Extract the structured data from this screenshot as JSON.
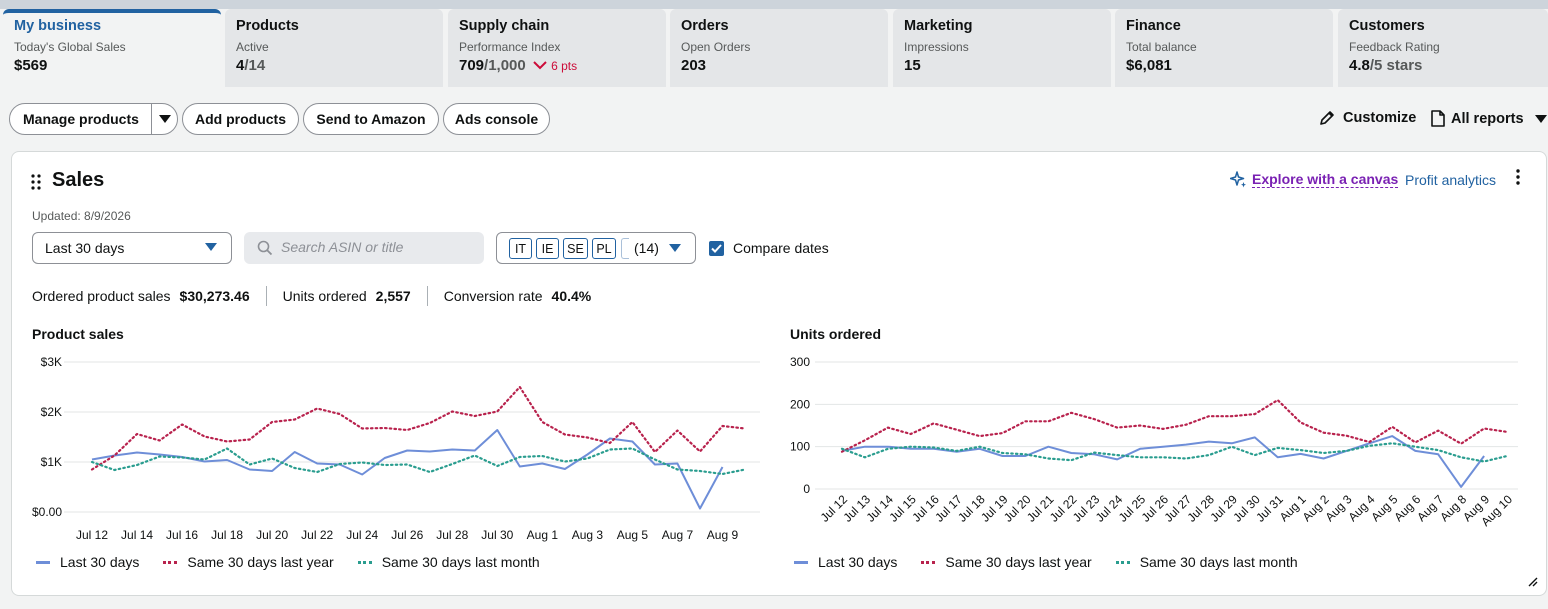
{
  "tabs": [
    {
      "title": "My business",
      "subtitle": "Today's Global Sales",
      "value": "$569",
      "value_suffix": "",
      "delta": ""
    },
    {
      "title": "Products",
      "subtitle": "Active",
      "value": "4",
      "value_suffix": "/14",
      "delta": ""
    },
    {
      "title": "Supply chain",
      "subtitle": "Performance Index",
      "value": "709",
      "value_suffix": "/1,000",
      "delta": "6 pts"
    },
    {
      "title": "Orders",
      "subtitle": "Open Orders",
      "value": "203",
      "value_suffix": "",
      "delta": ""
    },
    {
      "title": "Marketing",
      "subtitle": "Impressions",
      "value": "15",
      "value_suffix": "",
      "delta": ""
    },
    {
      "title": "Finance",
      "subtitle": "Total balance",
      "value": "$6,081",
      "value_suffix": "",
      "delta": ""
    },
    {
      "title": "Customers",
      "subtitle": "Feedback Rating",
      "value": "4.8",
      "value_suffix": "/5 stars",
      "delta": ""
    }
  ],
  "actions": {
    "manage_products": "Manage products",
    "add_products": "Add products",
    "send_to_amazon": "Send to Amazon",
    "ads_console": "Ads console",
    "customize": "Customize",
    "all_reports": "All reports"
  },
  "card": {
    "title": "Sales",
    "explore": "Explore with a canvas",
    "profit": "Profit analytics",
    "updated": "Updated: 8/9/2026"
  },
  "filters": {
    "date_range": "Last 30 days",
    "search_placeholder": "Search ASIN or title",
    "marketplaces": [
      "IT",
      "IE",
      "SE",
      "PL"
    ],
    "marketplace_count": "(14)",
    "compare_label": "Compare dates",
    "compare_checked": true
  },
  "metrics": [
    {
      "label": "Ordered product sales",
      "value": "$30,273.46"
    },
    {
      "label": "Units ordered",
      "value": "2,557"
    },
    {
      "label": "Conversion rate",
      "value": "40.4%"
    }
  ],
  "colors": {
    "accent": "#2162a1",
    "explore": "#7a21b3",
    "down": "#cc0c39",
    "series_blue": "#6e8ed8",
    "series_red": "#b8224d",
    "series_teal": "#2a9d8f"
  },
  "chart_data": [
    {
      "type": "line",
      "title": "Product sales",
      "x": [
        "Jul 12",
        "Jul 13",
        "Jul 14",
        "Jul 15",
        "Jul 16",
        "Jul 17",
        "Jul 18",
        "Jul 19",
        "Jul 20",
        "Jul 21",
        "Jul 22",
        "Jul 23",
        "Jul 24",
        "Jul 25",
        "Jul 26",
        "Jul 27",
        "Jul 28",
        "Jul 29",
        "Jul 30",
        "Jul 31",
        "Aug 1",
        "Aug 2",
        "Aug 3",
        "Aug 4",
        "Aug 5",
        "Aug 6",
        "Aug 7",
        "Aug 8",
        "Aug 9",
        "Aug 10"
      ],
      "xtick_labels": [
        "Jul 12",
        "Jul 14",
        "Jul 16",
        "Jul 18",
        "Jul 20",
        "Jul 22",
        "Jul 24",
        "Jul 26",
        "Jul 28",
        "Jul 30",
        "Aug 1",
        "Aug 3",
        "Aug 5",
        "Aug 7",
        "Aug 9"
      ],
      "ytick_labels": [
        "$0.00",
        "$1K",
        "$2K",
        "$3K"
      ],
      "ylim": [
        0,
        3000
      ],
      "grid": true,
      "legend_position": "bottom-left",
      "series": [
        {
          "name": "Last 30 days",
          "style": "solid",
          "values": [
            1050,
            1130,
            1190,
            1150,
            1100,
            1010,
            1040,
            850,
            820,
            1200,
            970,
            950,
            750,
            1080,
            1230,
            1210,
            1250,
            1230,
            1640,
            910,
            970,
            860,
            1150,
            1470,
            1410,
            950,
            970,
            70,
            900,
            null
          ]
        },
        {
          "name": "Same 30 days last year",
          "style": "dotted",
          "values": [
            850,
            1130,
            1560,
            1430,
            1750,
            1510,
            1410,
            1450,
            1800,
            1850,
            2070,
            1960,
            1670,
            1680,
            1640,
            1780,
            2010,
            1920,
            2010,
            2500,
            1800,
            1550,
            1490,
            1380,
            1800,
            1200,
            1630,
            1210,
            1720,
            1670
          ]
        },
        {
          "name": "Same 30 days last month",
          "style": "dotted",
          "values": [
            1000,
            840,
            940,
            1110,
            1090,
            1050,
            1270,
            950,
            1070,
            880,
            800,
            960,
            990,
            940,
            950,
            800,
            960,
            1130,
            920,
            1100,
            1120,
            1010,
            1070,
            1250,
            1270,
            1050,
            850,
            820,
            760,
            850
          ]
        }
      ]
    },
    {
      "type": "line",
      "title": "Units ordered",
      "x": [
        "Jul 12",
        "Jul 13",
        "Jul 14",
        "Jul 15",
        "Jul 16",
        "Jul 17",
        "Jul 18",
        "Jul 19",
        "Jul 20",
        "Jul 21",
        "Jul 22",
        "Jul 23",
        "Jul 24",
        "Jul 25",
        "Jul 26",
        "Jul 27",
        "Jul 28",
        "Jul 29",
        "Jul 30",
        "Jul 31",
        "Aug 1",
        "Aug 2",
        "Aug 3",
        "Aug 4",
        "Aug 5",
        "Aug 6",
        "Aug 7",
        "Aug 8",
        "Aug 9",
        "Aug 10"
      ],
      "xtick_labels": [
        "Jul 12",
        "Jul 13",
        "Jul 14",
        "Jul 15",
        "Jul 16",
        "Jul 17",
        "Jul 18",
        "Jul 19",
        "Jul 20",
        "Jul 21",
        "Jul 22",
        "Jul 23",
        "Jul 24",
        "Jul 25",
        "Jul 26",
        "Jul 27",
        "Jul 28",
        "Jul 29",
        "Jul 30",
        "Jul 31",
        "Aug 1",
        "Aug 2",
        "Aug 3",
        "Aug 4",
        "Aug 5",
        "Aug 6",
        "Aug 7",
        "Aug 8",
        "Aug 9",
        "Aug 10"
      ],
      "ytick_labels": [
        "0",
        "100",
        "200",
        "300"
      ],
      "ylim": [
        0,
        300
      ],
      "grid": true,
      "legend_position": "bottom-left",
      "series": [
        {
          "name": "Last 30 days",
          "style": "solid",
          "values": [
            90,
            100,
            100,
            95,
            95,
            88,
            95,
            78,
            78,
            100,
            85,
            82,
            70,
            95,
            100,
            105,
            112,
            108,
            122,
            75,
            83,
            72,
            90,
            108,
            125,
            90,
            82,
            5,
            78,
            null
          ]
        },
        {
          "name": "Same 30 days last year",
          "style": "dotted",
          "values": [
            88,
            115,
            145,
            130,
            155,
            140,
            125,
            132,
            160,
            160,
            180,
            165,
            145,
            150,
            142,
            152,
            172,
            172,
            177,
            210,
            157,
            133,
            126,
            111,
            147,
            110,
            138,
            107,
            143,
            135
          ]
        },
        {
          "name": "Same 30 days last month",
          "style": "dotted",
          "values": [
            95,
            75,
            95,
            100,
            98,
            90,
            100,
            85,
            82,
            72,
            68,
            86,
            80,
            75,
            75,
            72,
            80,
            100,
            80,
            97,
            92,
            85,
            90,
            102,
            108,
            100,
            92,
            75,
            65,
            78
          ]
        }
      ]
    }
  ]
}
